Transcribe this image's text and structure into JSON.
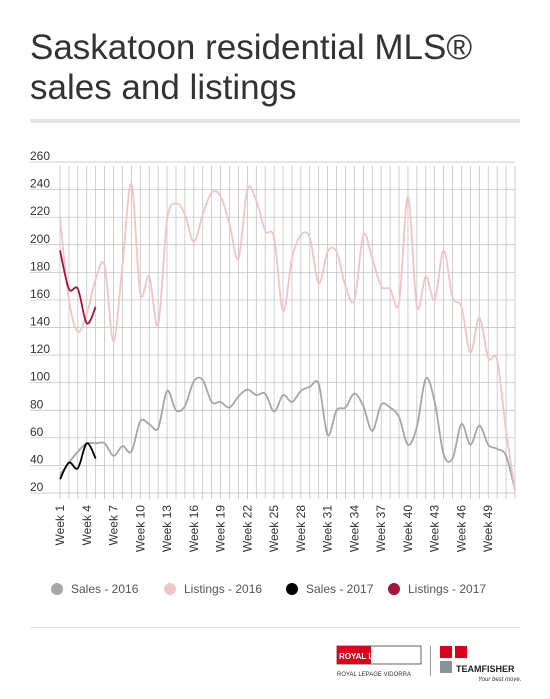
{
  "chart_data": {
    "type": "line",
    "title": "Saskatoon residential MLS® sales and listings",
    "categories": [
      "Week 1",
      null,
      null,
      "Week 4",
      null,
      null,
      "Week 7",
      null,
      null,
      "Week 10",
      null,
      null,
      "Week 13",
      null,
      null,
      "Week 16",
      null,
      null,
      "Week 19",
      null,
      null,
      "Week 22",
      null,
      null,
      "Week 25",
      null,
      null,
      "Week 28",
      null,
      null,
      "Week 31",
      null,
      null,
      "Week 34",
      null,
      null,
      "Week 37",
      null,
      null,
      "Week 40",
      null,
      null,
      "Week 43",
      null,
      null,
      "Week 46",
      null,
      null,
      "Week 49",
      null,
      null,
      null
    ],
    "series": [
      {
        "name": "Sales - 2016",
        "color": "#a6a6a6",
        "values": [
          33,
          42,
          50,
          56,
          56,
          56,
          47,
          54,
          50,
          72,
          70,
          67,
          94,
          80,
          83,
          101,
          102,
          86,
          86,
          82,
          90,
          95,
          91,
          92,
          79,
          91,
          86,
          94,
          97,
          99,
          62,
          80,
          82,
          92,
          83,
          65,
          84,
          82,
          75,
          55,
          68,
          103,
          86,
          48,
          45,
          70,
          55,
          69,
          55,
          52,
          47,
          22
        ]
      },
      {
        "name": "Listings - 2016",
        "color": "#f2c4c4",
        "values": [
          220,
          160,
          137,
          150,
          175,
          185,
          130,
          185,
          244,
          165,
          177,
          142,
          218,
          230,
          222,
          202,
          222,
          238,
          235,
          215,
          190,
          240,
          232,
          210,
          205,
          152,
          190,
          207,
          205,
          172,
          195,
          195,
          170,
          160,
          207,
          190,
          170,
          168,
          158,
          235,
          155,
          177,
          160,
          196,
          162,
          155,
          122,
          147,
          118,
          116,
          65,
          22
        ]
      },
      {
        "name": "Sales - 2017",
        "color": "#000000",
        "values": [
          30,
          42,
          38,
          56,
          45,
          null,
          null,
          null,
          null,
          null,
          null,
          null,
          null,
          null,
          null,
          null,
          null,
          null,
          null,
          null,
          null,
          null,
          null,
          null,
          null,
          null,
          null,
          null,
          null,
          null,
          null,
          null,
          null,
          null,
          null,
          null,
          null,
          null,
          null,
          null,
          null,
          null,
          null,
          null,
          null,
          null,
          null,
          null,
          null,
          null,
          null,
          null
        ]
      },
      {
        "name": "Listings - 2017",
        "color": "#a3163a",
        "values": [
          196,
          168,
          168,
          143,
          155,
          null,
          null,
          null,
          null,
          null,
          null,
          null,
          null,
          null,
          null,
          null,
          null,
          null,
          null,
          null,
          null,
          null,
          null,
          null,
          null,
          null,
          null,
          null,
          null,
          null,
          null,
          null,
          null,
          null,
          null,
          null,
          null,
          null,
          null,
          null,
          null,
          null,
          null,
          null,
          null,
          null,
          null,
          null,
          null,
          null,
          null,
          null
        ]
      }
    ],
    "ylim": [
      20,
      260
    ],
    "yticks": [
      20,
      40,
      60,
      80,
      100,
      120,
      140,
      160,
      180,
      200,
      220,
      240,
      260
    ],
    "grid": true,
    "legend": "bottom"
  },
  "logos": {
    "royal_lepage": "ROYAL LEPAGE",
    "vidorra": "ROYAL LEPAGE VIDORRA",
    "teamfisher": "TEAMFISHER",
    "tagline": "Your best move."
  }
}
